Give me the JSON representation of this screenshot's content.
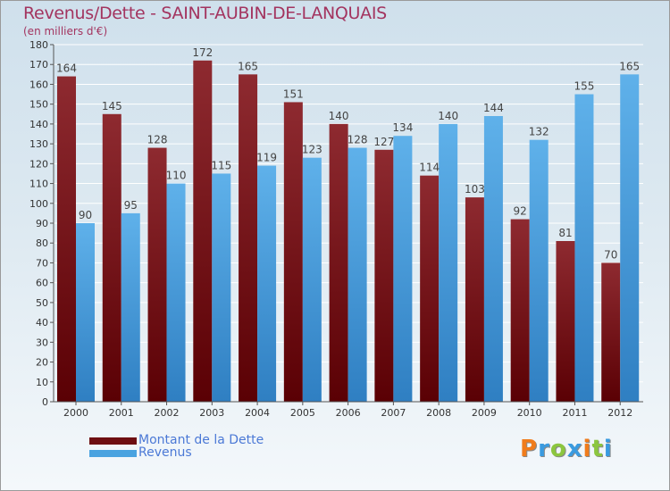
{
  "chart_data": {
    "type": "bar",
    "title": "Revenus/Dette - SAINT-AUBIN-DE-LANQUAIS",
    "subtitle": "(en milliers d'€)",
    "categories": [
      "2000",
      "2001",
      "2002",
      "2003",
      "2004",
      "2005",
      "2006",
      "2007",
      "2008",
      "2009",
      "2010",
      "2011",
      "2012"
    ],
    "series": [
      {
        "name": "Montant de la Dette",
        "color": "#6e0f12",
        "values": [
          164,
          145,
          128,
          172,
          165,
          151,
          140,
          127,
          114,
          103,
          92,
          81,
          70
        ]
      },
      {
        "name": "Revenus",
        "color": "#4aa3e0",
        "values": [
          90,
          95,
          110,
          115,
          119,
          123,
          128,
          134,
          140,
          144,
          132,
          155,
          165
        ]
      }
    ],
    "ylim": [
      0,
      180
    ],
    "ytick_step": 10,
    "xlabel": "",
    "ylabel": "",
    "grid": true,
    "legend_position": "bottom-left"
  },
  "brand": {
    "logo_text": "Proxiti"
  }
}
